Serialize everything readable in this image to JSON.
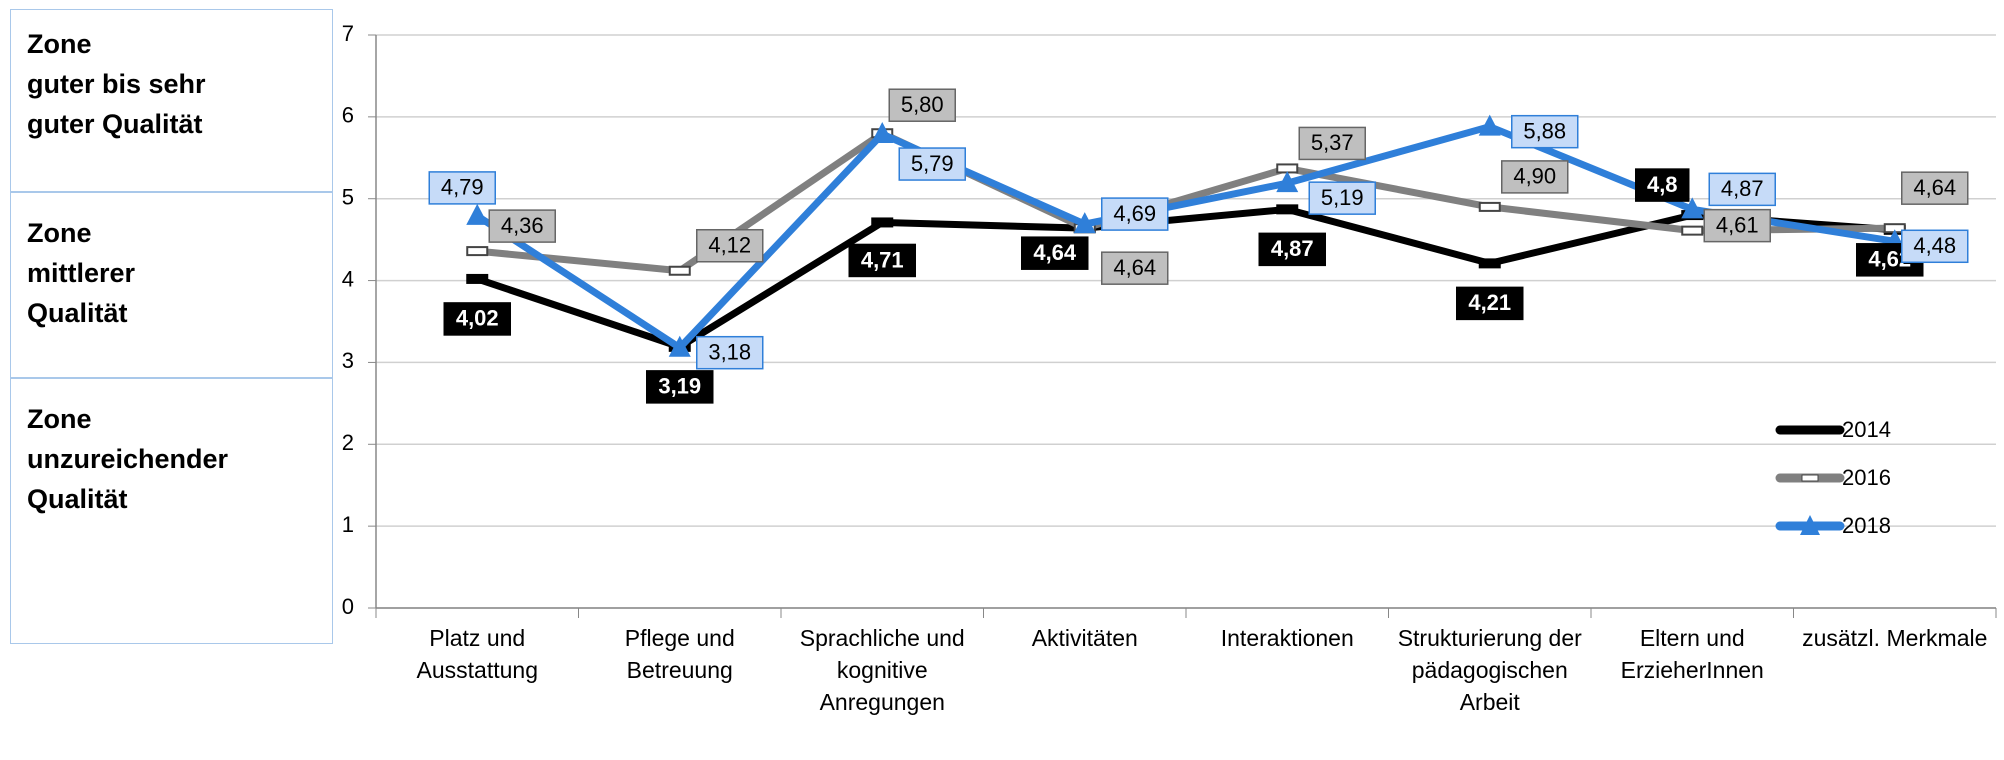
{
  "chart_data": {
    "type": "line",
    "zones": [
      [
        "Zone",
        "guter bis sehr",
        "guter Qualität"
      ],
      [
        "Zone",
        "mittlerer",
        "Qualität"
      ],
      [
        "Zone",
        "unzureichender",
        "Qualität"
      ]
    ],
    "categories": [
      "Platz und Ausstattung",
      "Pflege und Betreuung",
      "Sprachliche und kognitive Anregungen",
      "Aktivitäten",
      "Interaktionen",
      "Strukturierung der pädagogischen Arbeit",
      "Eltern und ErzieherInnen",
      "zusätzl. Merkmale"
    ],
    "series": [
      {
        "name": "2014",
        "color": "#000000",
        "values": [
          4.02,
          3.19,
          4.71,
          4.64,
          4.87,
          4.21,
          4.8,
          4.62
        ],
        "value_labels": [
          "4,02",
          "3,19",
          "4,71",
          "4,64",
          "4,87",
          "4,21",
          "4,8",
          "4,62"
        ]
      },
      {
        "name": "2016",
        "color": "#808080",
        "values": [
          4.36,
          4.12,
          5.8,
          4.64,
          5.37,
          4.9,
          4.61,
          4.64
        ],
        "value_labels": [
          "4,36",
          "4,12",
          "5,80",
          "4,64",
          "5,37",
          "4,90",
          "4,61",
          "4,64"
        ]
      },
      {
        "name": "2018",
        "color": "#2f7fd9",
        "values": [
          4.79,
          3.18,
          5.79,
          4.69,
          5.19,
          5.88,
          4.87,
          4.48
        ],
        "value_labels": [
          "4,79",
          "3,18",
          "5,79",
          "4,69",
          "5,19",
          "5,88",
          "4,87",
          "4,48"
        ]
      }
    ],
    "ylim": [
      0,
      7
    ],
    "yticks": [
      0,
      1,
      2,
      3,
      4,
      5,
      6,
      7
    ],
    "grid": true,
    "legend": "lower-right"
  }
}
